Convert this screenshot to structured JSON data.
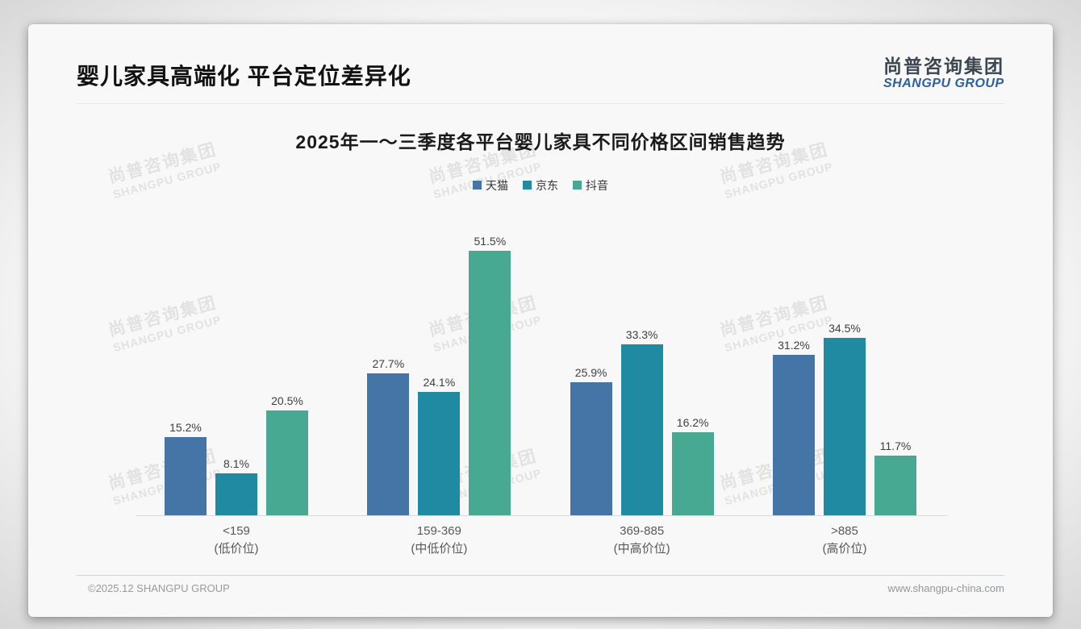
{
  "page": {
    "title": "婴儿家具高端化 平台定位差异化",
    "logo": {
      "cn": "尚普咨询集团",
      "en": "SHANGPU GROUP"
    },
    "watermark": {
      "cn": "尚普咨询集团",
      "en": "SHANGPU GROUP"
    },
    "footer": {
      "copyright": "©2025.12 SHANGPU GROUP",
      "website": "www.shangpu-china.com"
    }
  },
  "chart_data": {
    "type": "bar",
    "title": "2025年一～三季度各平台婴儿家具不同价格区间销售趋势",
    "categories": [
      {
        "range": "<159",
        "tier": "(低价位)"
      },
      {
        "range": "159-369",
        "tier": "(中低价位)"
      },
      {
        "range": "369-885",
        "tier": "(中高价位)"
      },
      {
        "range": ">885",
        "tier": "(高价位)"
      }
    ],
    "series": [
      {
        "name": "天猫",
        "color": "#4575a7",
        "values": [
          15.2,
          27.7,
          25.9,
          31.2
        ]
      },
      {
        "name": "京东",
        "color": "#1f8aa2",
        "values": [
          8.1,
          24.1,
          33.3,
          34.5
        ]
      },
      {
        "name": "抖音",
        "color": "#47a991",
        "values": [
          20.5,
          51.5,
          16.2,
          11.7
        ]
      }
    ],
    "value_suffix": "%",
    "ylim": [
      0,
      55
    ],
    "xlabel": "",
    "ylabel": "",
    "legend_position": "top",
    "grid": false
  }
}
